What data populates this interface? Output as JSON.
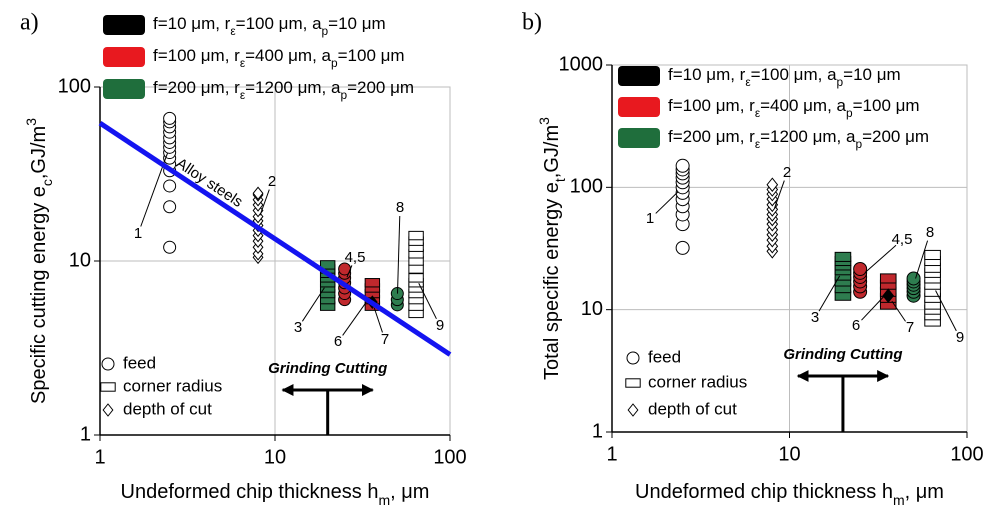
{
  "chart_data": [
    {
      "type": "scatter",
      "panel": "a)",
      "x_label": [
        {
          "text": "Undeformed chip thickness h"
        },
        {
          "text": "m",
          "script": "sub"
        },
        {
          "text": ", μm"
        }
      ],
      "y_label": [
        {
          "text": "Specific cutting energy e"
        },
        {
          "text": "c",
          "script": "sub"
        },
        {
          "text": ",GJ/m"
        },
        {
          "text": "3",
          "script": "sup"
        }
      ],
      "xlim": [
        1,
        100
      ],
      "ylim": [
        1,
        100
      ],
      "xticks": [
        1,
        10,
        100
      ],
      "yticks": [
        1,
        10,
        100
      ],
      "log": true,
      "grid": true,
      "legend": [
        {
          "color": "#000000",
          "label": [
            {
              "text": "f=10 μm, r"
            },
            {
              "text": "ε",
              "script": "sub"
            },
            {
              "text": "=100 μm, a"
            },
            {
              "text": "p",
              "script": "sub"
            },
            {
              "text": "=10 μm"
            }
          ]
        },
        {
          "color": "#e8191f",
          "label": [
            {
              "text": "f=100 μm, r"
            },
            {
              "text": "ε",
              "script": "sub"
            },
            {
              "text": "=400 μm, a"
            },
            {
              "text": "p",
              "script": "sub"
            },
            {
              "text": "=100 μm"
            }
          ]
        },
        {
          "color": "#1f6e3c",
          "label": [
            {
              "text": "f=200 μm, r"
            },
            {
              "text": "ε",
              "script": "sub"
            },
            {
              "text": "=1200 μm, a"
            },
            {
              "text": "p",
              "script": "sub"
            },
            {
              "text": "=200 μm"
            }
          ]
        }
      ],
      "marker_legend": [
        {
          "marker": "circle",
          "label": "feed"
        },
        {
          "marker": "square",
          "label": "corner radius"
        },
        {
          "marker": "diamond",
          "label": "depth of cut"
        }
      ],
      "annotation": {
        "text": "Grinding Cutting",
        "x": 20
      },
      "series": [
        {
          "label": "1",
          "marker": "circle",
          "color": "#ffffff",
          "x": 2.5,
          "values": [
            12,
            20.5,
            27,
            33,
            36,
            39,
            42,
            45,
            48,
            51,
            55,
            59,
            63,
            66
          ]
        },
        {
          "label": "2",
          "marker": "diamond",
          "color": "#ffffff",
          "x": 8,
          "values": [
            10.5,
            11,
            12,
            13,
            14,
            15,
            16,
            17,
            18,
            19.5,
            21,
            22.5,
            24,
            24.5
          ]
        },
        {
          "label": "3",
          "marker": "square",
          "color": "#2e7d4f",
          "x": 20,
          "values": [
            5.5,
            6,
            6.5,
            7,
            7.5,
            8,
            8.5,
            9,
            9.5
          ]
        },
        {
          "label": "4,5",
          "marker": "circle",
          "color": "#c0282d",
          "x": 25,
          "values": [
            6,
            6.5,
            7,
            7.5,
            8,
            8.5,
            9
          ]
        },
        {
          "label": "6",
          "marker": "square",
          "color": "#c0282d",
          "x": 36,
          "values": [
            5.5,
            6,
            6.5,
            7,
            7.5
          ]
        },
        {
          "label": "7",
          "marker": "diamond",
          "color": "#000000",
          "x": 36,
          "values": [
            5.8
          ]
        },
        {
          "label": "8",
          "marker": "circle",
          "color": "#2e7d4f",
          "x": 50,
          "values": [
            5.6,
            6,
            6.5
          ]
        },
        {
          "label": "9",
          "marker": "square",
          "color": "#ffffff",
          "x": 64,
          "values": [
            5,
            5.5,
            6,
            6.5,
            7,
            7.5,
            8,
            9,
            10,
            11,
            12,
            13,
            14
          ]
        },
        {
          "label": "Alloy steels",
          "type": "line",
          "color": "#1414f0",
          "x": [
            1,
            100
          ],
          "values": [
            62,
            2.9
          ]
        }
      ]
    },
    {
      "type": "scatter",
      "panel": "b)",
      "x_label": [
        {
          "text": "Undeformed chip thickness h"
        },
        {
          "text": "m",
          "script": "sub"
        },
        {
          "text": ", μm"
        }
      ],
      "y_label": [
        {
          "text": "Total specific energy e"
        },
        {
          "text": "t",
          "script": "sub"
        },
        {
          "text": ",GJ/m"
        },
        {
          "text": "3",
          "script": "sup"
        }
      ],
      "xlim": [
        1,
        100
      ],
      "ylim": [
        1,
        1000
      ],
      "xticks": [
        1,
        10,
        100
      ],
      "yticks": [
        1,
        10,
        100,
        1000
      ],
      "log": true,
      "grid": true,
      "legend": [
        {
          "color": "#000000",
          "label": [
            {
              "text": "f=10 μm, r"
            },
            {
              "text": "ε",
              "script": "sub"
            },
            {
              "text": "=100 μm, a"
            },
            {
              "text": "p",
              "script": "sub"
            },
            {
              "text": "=10 μm"
            }
          ]
        },
        {
          "color": "#e8191f",
          "label": [
            {
              "text": "f=100 μm, r"
            },
            {
              "text": "ε",
              "script": "sub"
            },
            {
              "text": "=400 μm, a"
            },
            {
              "text": "p",
              "script": "sub"
            },
            {
              "text": "=100 μm"
            }
          ]
        },
        {
          "color": "#1f6e3c",
          "label": [
            {
              "text": "f=200 μm, r"
            },
            {
              "text": "ε",
              "script": "sub"
            },
            {
              "text": "=1200 μm, a"
            },
            {
              "text": "p",
              "script": "sub"
            },
            {
              "text": "=200 μm"
            }
          ]
        }
      ],
      "marker_legend": [
        {
          "marker": "circle",
          "label": "feed"
        },
        {
          "marker": "square",
          "label": "corner radius"
        },
        {
          "marker": "diamond",
          "label": "depth of cut"
        }
      ],
      "annotation": {
        "text": "Grinding Cutting",
        "x": 20
      },
      "series": [
        {
          "label": "1",
          "marker": "circle",
          "color": "#ffffff",
          "x": 2.5,
          "values": [
            32,
            50,
            60,
            70,
            80,
            90,
            100,
            110,
            120,
            130,
            140,
            150
          ]
        },
        {
          "label": "2",
          "marker": "diamond",
          "color": "#ffffff",
          "x": 8,
          "values": [
            30,
            33,
            37,
            41,
            45,
            50,
            55,
            60,
            66,
            72,
            80,
            88,
            96,
            105
          ]
        },
        {
          "label": "3",
          "marker": "square",
          "color": "#2e7d4f",
          "x": 20,
          "values": [
            13,
            15,
            17,
            19,
            21,
            23,
            25,
            27
          ]
        },
        {
          "label": "4,5",
          "marker": "circle",
          "color": "#c0282d",
          "x": 25,
          "values": [
            14,
            15.5,
            17,
            18.5,
            20,
            21.5
          ]
        },
        {
          "label": "6",
          "marker": "square",
          "color": "#c0282d",
          "x": 36,
          "values": [
            11,
            12.5,
            14,
            16,
            18
          ]
        },
        {
          "label": "7",
          "marker": "diamond",
          "color": "#000000",
          "x": 36,
          "values": [
            13
          ]
        },
        {
          "label": "8",
          "marker": "circle",
          "color": "#2e7d4f",
          "x": 50,
          "values": [
            13,
            14,
            15,
            16,
            17,
            18
          ]
        },
        {
          "label": "9",
          "marker": "square",
          "color": "#ffffff",
          "x": 64,
          "values": [
            8,
            9,
            10,
            11,
            12.5,
            14,
            16,
            18,
            20,
            22,
            25,
            28
          ]
        }
      ]
    }
  ]
}
